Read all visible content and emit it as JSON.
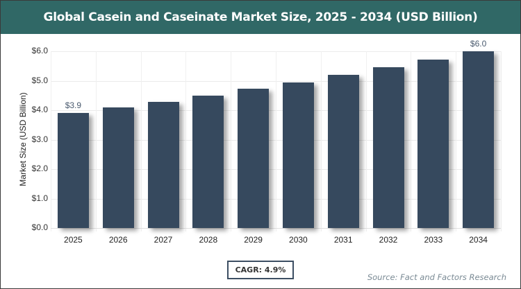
{
  "header": {
    "title": "Global Casein and Caseinate Market Size, 2025 - 2034 (USD Billion)"
  },
  "colors": {
    "title_bg": "#306866",
    "bar": "#36495e",
    "cagr_border": "#3c4e62"
  },
  "axis": {
    "ylabel": "Market Size (USD Billion)",
    "yticks": [
      "$0.0",
      "$1.0",
      "$2.0",
      "$3.0",
      "$4.0",
      "$5.0",
      "$6.0"
    ],
    "xticks": [
      "2025",
      "2026",
      "2027",
      "2028",
      "2029",
      "2030",
      "2031",
      "2032",
      "2033",
      "2034"
    ]
  },
  "labels": {
    "first": "$3.9",
    "last": "$6.0"
  },
  "footer": {
    "cagr": "CAGR: 4.9%",
    "source": "Source: Fact and Factors Research"
  },
  "chart_data": {
    "type": "bar",
    "title": "Global Casein and Caseinate Market Size, 2025 - 2034 (USD Billion)",
    "xlabel": "",
    "ylabel": "Market Size (USD Billion)",
    "categories": [
      "2025",
      "2026",
      "2027",
      "2028",
      "2029",
      "2030",
      "2031",
      "2032",
      "2033",
      "2034"
    ],
    "values": [
      3.9,
      4.09,
      4.29,
      4.5,
      4.72,
      4.95,
      5.2,
      5.45,
      5.72,
      6.0
    ],
    "data_labels": {
      "2025": "$3.9",
      "2034": "$6.0"
    },
    "ylim": [
      0,
      6
    ],
    "yticks": [
      0,
      1,
      2,
      3,
      4,
      5,
      6
    ],
    "grid": true,
    "legend": "none",
    "annotations": [
      "CAGR: 4.9%",
      "Source: Fact and Factors Research"
    ]
  }
}
